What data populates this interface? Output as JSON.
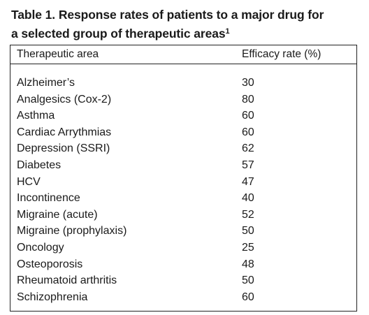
{
  "caption": {
    "title_line1": "Table 1. Response rates of patients to a major drug for",
    "title_line2": "a selected group of therapeutic areas",
    "footnote_marker": "1"
  },
  "table": {
    "headers": {
      "area": "Therapeutic area",
      "rate": "Efficacy rate (%)"
    },
    "rows": [
      {
        "area": "Alzheimer’s",
        "rate": "30"
      },
      {
        "area": "Analgesics (Cox-2)",
        "rate": "80"
      },
      {
        "area": "Asthma",
        "rate": "60"
      },
      {
        "area": "Cardiac Arrythmias",
        "rate": "60"
      },
      {
        "area": "Depression (SSRI)",
        "rate": "62"
      },
      {
        "area": "Diabetes",
        "rate": "57"
      },
      {
        "area": "HCV",
        "rate": "47"
      },
      {
        "area": "Incontinence",
        "rate": "40"
      },
      {
        "area": "Migraine (acute)",
        "rate": "52"
      },
      {
        "area": "Migraine (prophylaxis)",
        "rate": "50"
      },
      {
        "area": "Oncology",
        "rate": "25"
      },
      {
        "area": "Osteoporosis",
        "rate": "48"
      },
      {
        "area": "Rheumatoid arthritis",
        "rate": "50"
      },
      {
        "area": "Schizophrenia",
        "rate": "60"
      }
    ]
  }
}
